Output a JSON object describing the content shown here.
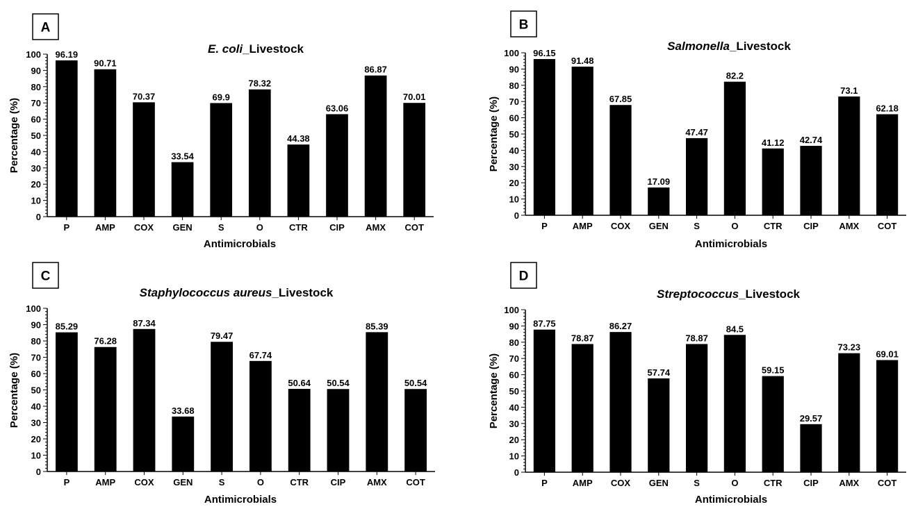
{
  "colors": {
    "bar": "#000000",
    "axis": "#000000",
    "background": "#ffffff"
  },
  "chart_data": [
    {
      "type": "bar",
      "panel": "A",
      "title_italic": "E. coli",
      "title_rest": "_Livestock",
      "xlabel": "Antimicrobials",
      "ylabel": "Percentage (%)",
      "ylim": [
        0,
        100
      ],
      "yticks": [
        "0",
        "10",
        "20",
        "30",
        "40",
        "50",
        "60",
        "70",
        "80",
        "90",
        "100"
      ],
      "categories": [
        "P",
        "AMP",
        "COX",
        "GEN",
        "S",
        "O",
        "CTR",
        "CIP",
        "AMX",
        "COT"
      ],
      "values": [
        96.19,
        90.71,
        70.37,
        33.54,
        69.9,
        78.32,
        44.38,
        63.06,
        86.87,
        70.01
      ],
      "value_labels": [
        "96.19",
        "90.71",
        "70.37",
        "33.54",
        "69.9",
        "78.32",
        "44.38",
        "63.06",
        "86.87",
        "70.01"
      ],
      "grid": false
    },
    {
      "type": "bar",
      "panel": "B",
      "title_italic": "Salmonella",
      "title_rest": "_Livestock",
      "xlabel": "Antimicrobials",
      "ylabel": "Percentage (%)",
      "ylim": [
        0,
        100
      ],
      "yticks": [
        "0",
        "10",
        "20",
        "30",
        "40",
        "50",
        "60",
        "70",
        "80",
        "90",
        "100"
      ],
      "categories": [
        "P",
        "AMP",
        "COX",
        "GEN",
        "S",
        "O",
        "CTR",
        "CIP",
        "AMX",
        "COT"
      ],
      "values": [
        96.15,
        91.48,
        67.85,
        17.09,
        47.47,
        82.2,
        41.12,
        42.74,
        73.1,
        62.18
      ],
      "value_labels": [
        "96.15",
        "91.48",
        "67.85",
        "17.09",
        "47.47",
        "82.2",
        "41.12",
        "42.74",
        "73.1",
        "62.18"
      ],
      "grid": false
    },
    {
      "type": "bar",
      "panel": "C",
      "title_italic": "Staphylococcus  aureus",
      "title_rest": "_Livestock",
      "xlabel": "Antimicrobials",
      "ylabel": "Percentage (%)",
      "ylim": [
        0,
        100
      ],
      "yticks": [
        "0",
        "10",
        "20",
        "30",
        "40",
        "50",
        "60",
        "70",
        "80",
        "90",
        "100"
      ],
      "categories": [
        "P",
        "AMP",
        "COX",
        "GEN",
        "S",
        "O",
        "CTR",
        "CIP",
        "AMX",
        "COT"
      ],
      "values": [
        85.29,
        76.28,
        87.34,
        33.68,
        79.47,
        67.74,
        50.64,
        50.54,
        85.39,
        50.54
      ],
      "value_labels": [
        "85.29",
        "76.28",
        "87.34",
        "33.68",
        "79.47",
        "67.74",
        "50.64",
        "50.54",
        "85.39",
        "50.54"
      ],
      "grid": false
    },
    {
      "type": "bar",
      "panel": "D",
      "title_italic": "Streptococcus",
      "title_rest": "_Livestock",
      "xlabel": "Antimicrobials",
      "ylabel": "Percentage (%)",
      "ylim": [
        0,
        100
      ],
      "yticks": [
        "0",
        "10",
        "20",
        "30",
        "40",
        "50",
        "60",
        "70",
        "80",
        "90",
        "100"
      ],
      "categories": [
        "P",
        "AMP",
        "COX",
        "GEN",
        "S",
        "O",
        "CTR",
        "CIP",
        "AMX",
        "COT"
      ],
      "values": [
        87.75,
        78.87,
        86.27,
        57.74,
        78.87,
        84.5,
        59.15,
        29.57,
        73.23,
        69.01
      ],
      "value_labels": [
        "87.75",
        "78.87",
        "86.27",
        "57.74",
        "78.87",
        "84.5",
        "59.15",
        "29.57",
        "73.23",
        "69.01"
      ],
      "grid": false
    }
  ]
}
